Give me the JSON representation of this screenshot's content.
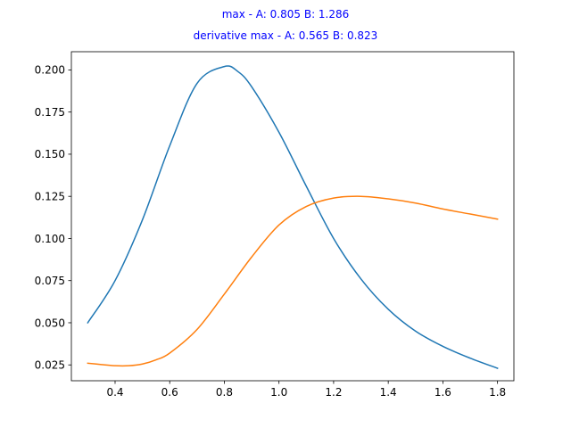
{
  "chart_data": {
    "type": "line",
    "title_lines": [
      "max - A: 0.805 B: 1.286",
      "derivative max - A: 0.565 B: 0.823"
    ],
    "title_color": "#0000ff",
    "xlabel": "",
    "ylabel": "",
    "xlim": [
      0.24,
      1.86
    ],
    "ylim": [
      0.0156,
      0.2108
    ],
    "x_ticks": [
      0.4,
      0.6,
      0.8,
      1.0,
      1.2,
      1.4,
      1.6,
      1.8
    ],
    "x_tick_labels": [
      "0.4",
      "0.6",
      "0.8",
      "1.0",
      "1.2",
      "1.4",
      "1.6",
      "1.8"
    ],
    "y_ticks": [
      0.025,
      0.05,
      0.075,
      0.1,
      0.125,
      0.15,
      0.175,
      0.2
    ],
    "y_tick_labels": [
      "0.025",
      "0.050",
      "0.075",
      "0.100",
      "0.125",
      "0.150",
      "0.175",
      "0.200"
    ],
    "grid": false,
    "series": [
      {
        "color": "#1f77b4",
        "x": [
          0.3,
          0.4,
          0.5,
          0.6,
          0.7,
          0.8,
          0.85,
          0.9,
          1.0,
          1.1,
          1.2,
          1.3,
          1.4,
          1.5,
          1.6,
          1.7,
          1.8
        ],
        "y": [
          0.05,
          0.075,
          0.111,
          0.155,
          0.192,
          0.202,
          0.199,
          0.19,
          0.163,
          0.131,
          0.1,
          0.076,
          0.058,
          0.045,
          0.036,
          0.029,
          0.023
        ]
      },
      {
        "color": "#ff7f0e",
        "x": [
          0.3,
          0.35,
          0.4,
          0.45,
          0.5,
          0.55,
          0.6,
          0.7,
          0.8,
          0.9,
          1.0,
          1.1,
          1.2,
          1.3,
          1.4,
          1.5,
          1.6,
          1.7,
          1.8
        ],
        "y": [
          0.026,
          0.0252,
          0.0245,
          0.0245,
          0.0255,
          0.028,
          0.032,
          0.046,
          0.067,
          0.089,
          0.108,
          0.119,
          0.124,
          0.125,
          0.1235,
          0.121,
          0.1175,
          0.1145,
          0.1115
        ]
      }
    ]
  }
}
